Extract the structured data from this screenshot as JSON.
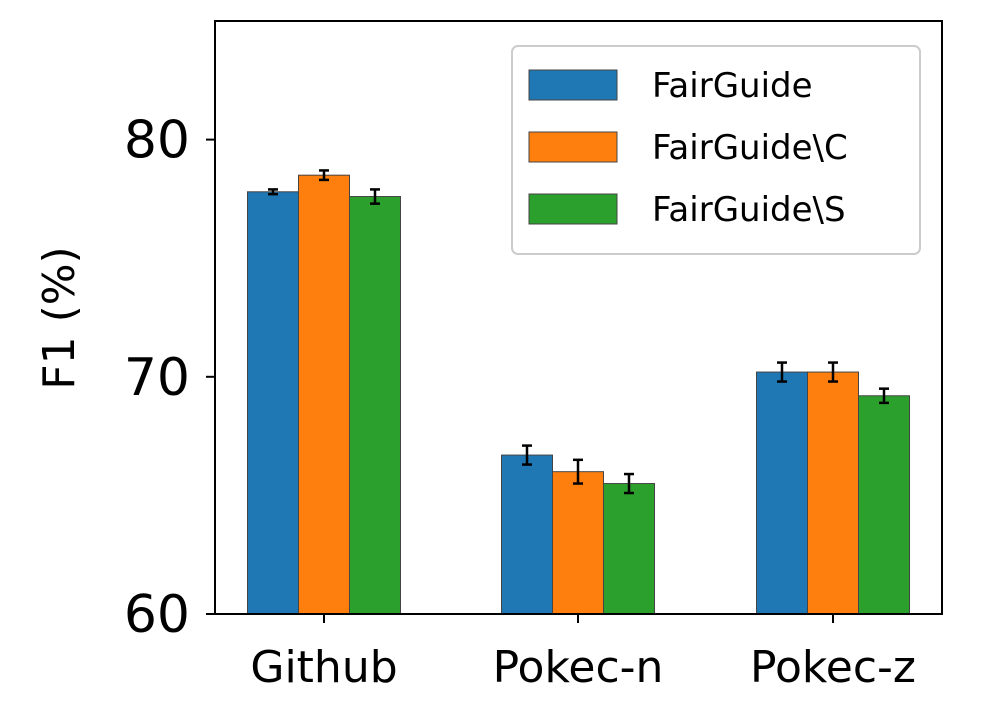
{
  "chart_data": {
    "type": "bar",
    "categories": [
      "Github",
      "Pokec-n",
      "Pokec-z"
    ],
    "series": [
      {
        "name": "FairGuide",
        "color": "#1f77b4",
        "values": [
          77.8,
          66.7,
          70.2
        ],
        "errors": [
          0.1,
          0.4,
          0.4
        ]
      },
      {
        "name": "FairGuide\\C",
        "color": "#ff7f0e",
        "values": [
          78.5,
          66.0,
          70.2
        ],
        "errors": [
          0.2,
          0.5,
          0.4
        ]
      },
      {
        "name": "FairGuide\\S",
        "color": "#2ca02c",
        "values": [
          77.6,
          65.5,
          69.2
        ],
        "errors": [
          0.3,
          0.4,
          0.3
        ]
      }
    ],
    "title": "",
    "xlabel": "",
    "ylabel": "F1 (%)",
    "ylim": [
      60,
      85
    ],
    "yticks": [
      "60",
      "70",
      "80"
    ],
    "legend_position": "upper right",
    "grid": false
  }
}
